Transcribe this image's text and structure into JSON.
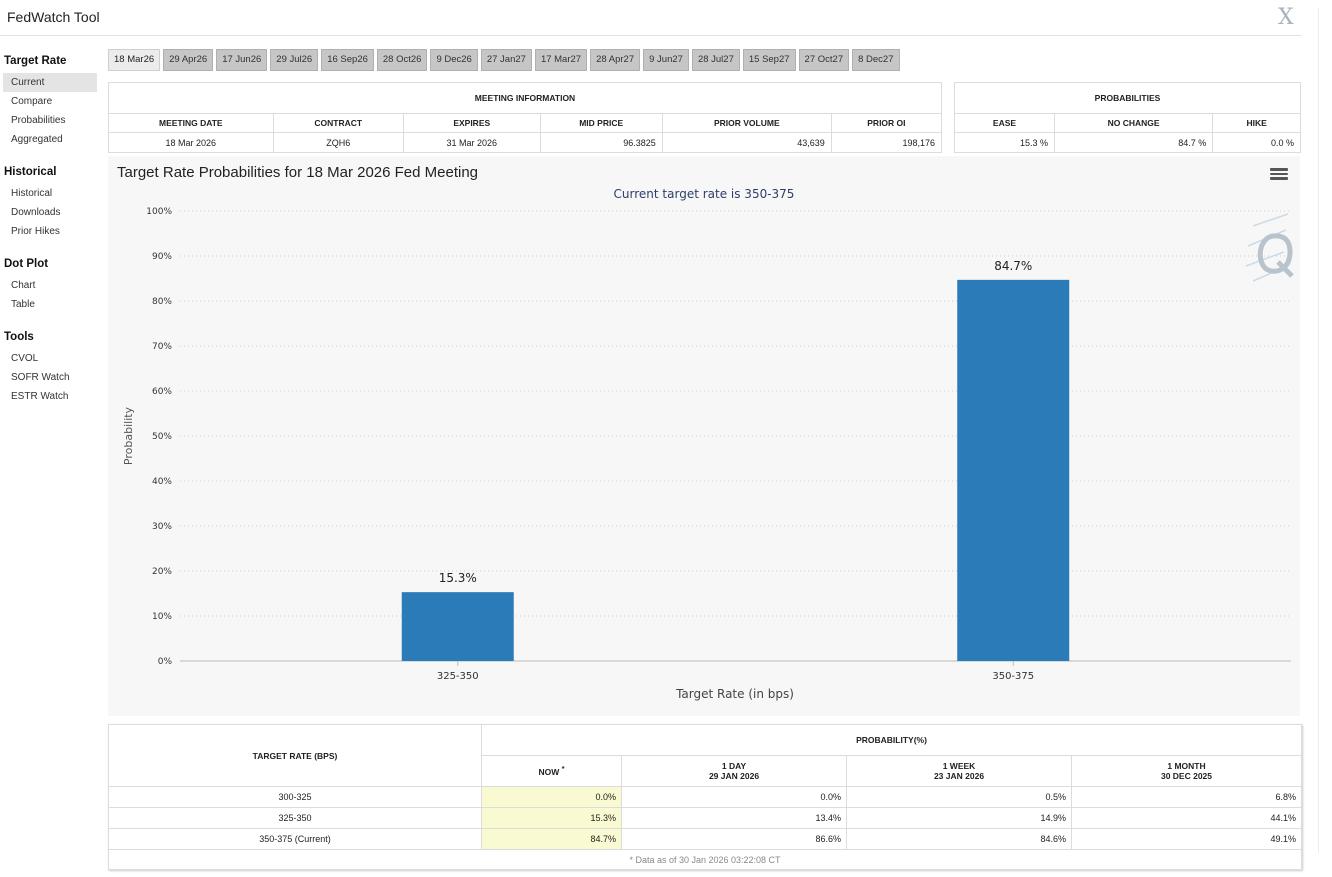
{
  "app": {
    "title": "FedWatch Tool",
    "close_label": "X"
  },
  "sidebar": {
    "sections": [
      {
        "heading": "Target Rate",
        "items": [
          "Current",
          "Compare",
          "Probabilities",
          "Aggregated"
        ]
      },
      {
        "heading": "Historical",
        "items": [
          "Historical",
          "Downloads",
          "Prior Hikes"
        ]
      },
      {
        "heading": "Dot Plot",
        "items": [
          "Chart",
          "Table"
        ]
      },
      {
        "heading": "Tools",
        "items": [
          "CVOL",
          "SOFR Watch",
          "ESTR Watch"
        ]
      }
    ],
    "active_item": "Current"
  },
  "tabs": [
    "18 Mar26",
    "29 Apr26",
    "17 Jun26",
    "29 Jul26",
    "16 Sep26",
    "28 Oct26",
    "9 Dec26",
    "27 Jan27",
    "17 Mar27",
    "28 Apr27",
    "9 Jun27",
    "28 Jul27",
    "15 Sep27",
    "27 Oct27",
    "8 Dec27"
  ],
  "active_tab": "18 Mar26",
  "meeting_info": {
    "title": "MEETING INFORMATION",
    "headers": [
      "MEETING DATE",
      "CONTRACT",
      "EXPIRES",
      "MID PRICE",
      "PRIOR VOLUME",
      "PRIOR OI"
    ],
    "values": [
      "18 Mar 2026",
      "ZQH6",
      "31 Mar 2026",
      "96.3825",
      "43,639",
      "198,176"
    ]
  },
  "probabilities": {
    "title": "PROBABILITIES",
    "headers": [
      "EASE",
      "NO CHANGE",
      "HIKE"
    ],
    "values": [
      "15.3 %",
      "84.7 %",
      "0.0 %"
    ]
  },
  "chart_data": {
    "type": "bar",
    "title": "Target Rate Probabilities for 18 Mar 2026 Fed Meeting",
    "subtitle": "Current target rate is 350-375",
    "xlabel": "Target Rate (in bps)",
    "ylabel": "Probability",
    "categories": [
      "325-350",
      "350-375"
    ],
    "values": [
      15.3,
      84.7
    ],
    "data_labels": [
      "15.3%",
      "84.7%"
    ],
    "ylim": [
      0,
      100
    ],
    "yticks": [
      "0%",
      "10%",
      "20%",
      "30%",
      "40%",
      "50%",
      "60%",
      "70%",
      "80%",
      "90%",
      "100%"
    ],
    "bar_color": "#2b7bb9",
    "grid": true,
    "legend": "none"
  },
  "history": {
    "target_header": "TARGET RATE (BPS)",
    "prob_header": "PROBABILITY(%)",
    "columns": [
      {
        "line1": "NOW",
        "line2": ""
      },
      {
        "line1": "1 DAY",
        "line2": "29 JAN 2026"
      },
      {
        "line1": "1 WEEK",
        "line2": "23 JAN 2026"
      },
      {
        "line1": "1 MONTH",
        "line2": "30 DEC 2025"
      }
    ],
    "now_mark": "*",
    "rows": [
      {
        "rate": "300-325",
        "values": [
          "0.0%",
          "0.0%",
          "0.5%",
          "6.8%"
        ]
      },
      {
        "rate": "325-350",
        "values": [
          "15.3%",
          "13.4%",
          "14.9%",
          "44.1%"
        ]
      },
      {
        "rate": "350-375 (Current)",
        "values": [
          "84.7%",
          "86.6%",
          "84.6%",
          "49.1%"
        ]
      }
    ],
    "footer": "* Data as of 30 Jan 2026 03:22:08 CT"
  }
}
